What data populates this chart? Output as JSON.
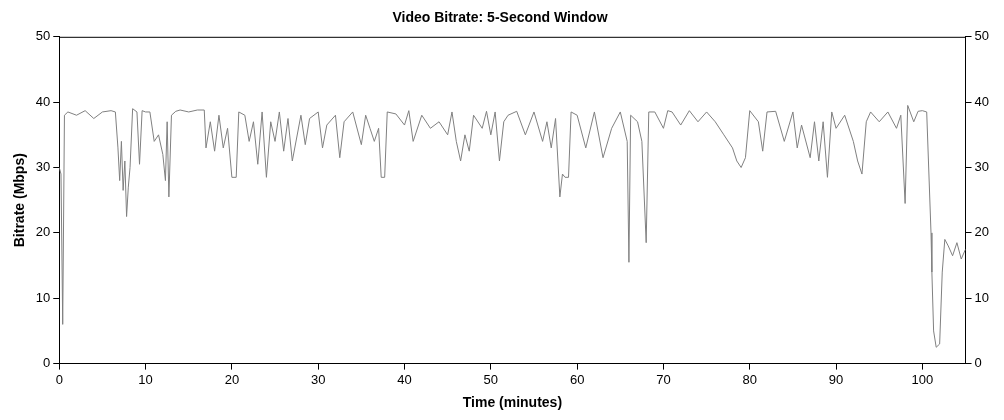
{
  "chart_data": {
    "type": "line",
    "title": "Video Bitrate: 5-Second Window",
    "xlabel": "Time (minutes)",
    "ylabel": "Bitrate (Mbps)",
    "xlim": [
      0,
      105
    ],
    "xticks": [
      0,
      10,
      20,
      30,
      40,
      50,
      60,
      70,
      80,
      90,
      100
    ],
    "ylim": [
      0,
      50
    ],
    "yticks": [
      0,
      10,
      20,
      30,
      40,
      50
    ],
    "y2lim": [
      0,
      50
    ],
    "y2ticks": [
      0,
      10,
      20,
      30,
      40,
      50
    ],
    "grid": false,
    "legend": false,
    "marker": "none",
    "line_style": "solid",
    "series": [
      {
        "color": "#808080",
        "x": [
          0,
          0.2,
          0.4,
          0.6,
          1,
          2,
          3,
          4,
          5,
          6,
          6.5,
          6.8,
          7,
          7.2,
          7.4,
          7.6,
          7.8,
          8,
          8.2,
          8.5,
          9,
          9.3,
          9.6,
          10,
          10.5,
          11,
          11.5,
          12,
          12.3,
          12.5,
          12.7,
          13,
          13.5,
          14,
          15,
          16,
          16.8,
          17,
          17.5,
          18,
          18.5,
          19,
          19.5,
          20,
          20.5,
          20.8,
          21.5,
          22,
          22.5,
          23,
          23.5,
          24,
          24.5,
          25,
          25.5,
          26,
          26.5,
          27,
          28,
          28.5,
          29,
          30,
          30.5,
          31,
          32,
          32.5,
          33,
          34,
          35,
          35.5,
          36,
          36.5,
          37,
          37.3,
          37.7,
          38,
          39,
          40,
          40.5,
          41,
          42,
          43,
          44,
          45,
          45.5,
          46,
          46.5,
          47,
          47.5,
          48,
          49,
          49.5,
          50,
          50.5,
          51,
          51.5,
          52,
          53,
          54,
          55,
          56,
          56.5,
          57,
          57.5,
          58,
          58.3,
          58.6,
          59,
          59.3,
          60,
          61,
          62,
          63,
          64,
          65,
          65.8,
          66,
          66.2,
          67,
          67.5,
          68,
          68.3,
          69,
          70,
          70.5,
          71,
          72,
          73,
          74,
          75,
          76,
          77,
          78,
          78.5,
          79,
          79.5,
          80,
          81,
          81.5,
          82,
          83,
          84,
          85,
          85.5,
          86,
          87,
          87.5,
          88,
          88.5,
          89,
          89.5,
          90,
          91,
          92,
          92.5,
          93,
          93.5,
          94,
          95,
          96,
          97,
          97.5,
          98,
          98.3,
          99,
          99.5,
          100,
          100.5,
          101,
          101.1,
          101.3,
          101.6,
          102,
          102.3,
          102.6,
          103,
          103.5,
          104,
          104.5,
          105
        ],
        "values": [
          30,
          29,
          6,
          38,
          38.5,
          38,
          38.7,
          37.5,
          38.5,
          38.7,
          38.5,
          33,
          28,
          34,
          26.5,
          31,
          22.5,
          27,
          30,
          39,
          38.5,
          30.5,
          38.7,
          38.5,
          38.5,
          34,
          35,
          32,
          28,
          37,
          25.5,
          38,
          38.6,
          38.8,
          38.5,
          38.8,
          38.8,
          33,
          37,
          32.5,
          38,
          33,
          36,
          28.5,
          28.5,
          38.5,
          38,
          34,
          37,
          30.5,
          38.5,
          28.5,
          37,
          34,
          38.5,
          32.5,
          37.5,
          31,
          38,
          33.5,
          37.5,
          38.5,
          33,
          36.5,
          38,
          31.5,
          37,
          38.5,
          33.5,
          38,
          36,
          34,
          36,
          28.5,
          28.5,
          38.5,
          38.2,
          36.5,
          38.7,
          34,
          38,
          36,
          37,
          35,
          38.5,
          34,
          31,
          35,
          32.5,
          38,
          36,
          38.6,
          35,
          38.5,
          31,
          37,
          38,
          38.6,
          35,
          38.5,
          34,
          37,
          33,
          37.5,
          25.5,
          29,
          28.5,
          28.5,
          38.5,
          38,
          33,
          38.5,
          31.5,
          36,
          38.5,
          34,
          15.5,
          38,
          37,
          34,
          18.5,
          38.5,
          38.5,
          36,
          38.7,
          38.5,
          36.5,
          38.7,
          37,
          38.5,
          37,
          35,
          33,
          31,
          30,
          31.5,
          38.7,
          37,
          32.5,
          38.5,
          38.6,
          34,
          38.5,
          33,
          36.5,
          31.5,
          37,
          31,
          37,
          28.5,
          38.5,
          36,
          38,
          34,
          31,
          29,
          37,
          38.5,
          37,
          38.5,
          36,
          38,
          24.5,
          39.5,
          37,
          38.6,
          38.7,
          38.5,
          20,
          14,
          5,
          2.5,
          3,
          14,
          19,
          18,
          16.5,
          18.5,
          16,
          17.5
        ]
      }
    ]
  }
}
